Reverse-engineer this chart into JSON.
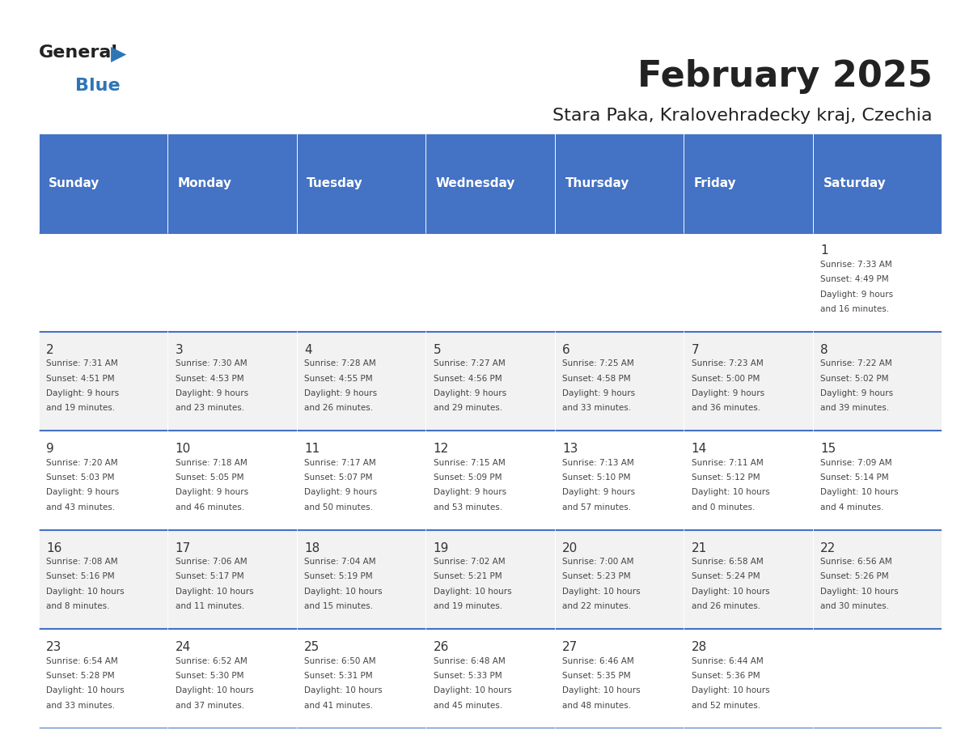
{
  "title": "February 2025",
  "subtitle": "Stara Paka, Kralovehradecky kraj, Czechia",
  "header_bg": "#4472C4",
  "header_text_color": "#FFFFFF",
  "day_names": [
    "Sunday",
    "Monday",
    "Tuesday",
    "Wednesday",
    "Thursday",
    "Friday",
    "Saturday"
  ],
  "row_bg_even": "#F2F2F2",
  "row_bg_odd": "#FFFFFF",
  "grid_line_color": "#4472C4",
  "title_color": "#222222",
  "subtitle_color": "#222222",
  "day_num_color": "#333333",
  "cell_text_color": "#444444",
  "logo_general_color": "#222222",
  "logo_blue_color": "#2E75B6",
  "calendar": [
    [
      null,
      null,
      null,
      null,
      null,
      null,
      {
        "day": 1,
        "sunrise": "7:33 AM",
        "sunset": "4:49 PM",
        "daylight": "9 hours\nand 16 minutes."
      }
    ],
    [
      {
        "day": 2,
        "sunrise": "7:31 AM",
        "sunset": "4:51 PM",
        "daylight": "9 hours\nand 19 minutes."
      },
      {
        "day": 3,
        "sunrise": "7:30 AM",
        "sunset": "4:53 PM",
        "daylight": "9 hours\nand 23 minutes."
      },
      {
        "day": 4,
        "sunrise": "7:28 AM",
        "sunset": "4:55 PM",
        "daylight": "9 hours\nand 26 minutes."
      },
      {
        "day": 5,
        "sunrise": "7:27 AM",
        "sunset": "4:56 PM",
        "daylight": "9 hours\nand 29 minutes."
      },
      {
        "day": 6,
        "sunrise": "7:25 AM",
        "sunset": "4:58 PM",
        "daylight": "9 hours\nand 33 minutes."
      },
      {
        "day": 7,
        "sunrise": "7:23 AM",
        "sunset": "5:00 PM",
        "daylight": "9 hours\nand 36 minutes."
      },
      {
        "day": 8,
        "sunrise": "7:22 AM",
        "sunset": "5:02 PM",
        "daylight": "9 hours\nand 39 minutes."
      }
    ],
    [
      {
        "day": 9,
        "sunrise": "7:20 AM",
        "sunset": "5:03 PM",
        "daylight": "9 hours\nand 43 minutes."
      },
      {
        "day": 10,
        "sunrise": "7:18 AM",
        "sunset": "5:05 PM",
        "daylight": "9 hours\nand 46 minutes."
      },
      {
        "day": 11,
        "sunrise": "7:17 AM",
        "sunset": "5:07 PM",
        "daylight": "9 hours\nand 50 minutes."
      },
      {
        "day": 12,
        "sunrise": "7:15 AM",
        "sunset": "5:09 PM",
        "daylight": "9 hours\nand 53 minutes."
      },
      {
        "day": 13,
        "sunrise": "7:13 AM",
        "sunset": "5:10 PM",
        "daylight": "9 hours\nand 57 minutes."
      },
      {
        "day": 14,
        "sunrise": "7:11 AM",
        "sunset": "5:12 PM",
        "daylight": "10 hours\nand 0 minutes."
      },
      {
        "day": 15,
        "sunrise": "7:09 AM",
        "sunset": "5:14 PM",
        "daylight": "10 hours\nand 4 minutes."
      }
    ],
    [
      {
        "day": 16,
        "sunrise": "7:08 AM",
        "sunset": "5:16 PM",
        "daylight": "10 hours\nand 8 minutes."
      },
      {
        "day": 17,
        "sunrise": "7:06 AM",
        "sunset": "5:17 PM",
        "daylight": "10 hours\nand 11 minutes."
      },
      {
        "day": 18,
        "sunrise": "7:04 AM",
        "sunset": "5:19 PM",
        "daylight": "10 hours\nand 15 minutes."
      },
      {
        "day": 19,
        "sunrise": "7:02 AM",
        "sunset": "5:21 PM",
        "daylight": "10 hours\nand 19 minutes."
      },
      {
        "day": 20,
        "sunrise": "7:00 AM",
        "sunset": "5:23 PM",
        "daylight": "10 hours\nand 22 minutes."
      },
      {
        "day": 21,
        "sunrise": "6:58 AM",
        "sunset": "5:24 PM",
        "daylight": "10 hours\nand 26 minutes."
      },
      {
        "day": 22,
        "sunrise": "6:56 AM",
        "sunset": "5:26 PM",
        "daylight": "10 hours\nand 30 minutes."
      }
    ],
    [
      {
        "day": 23,
        "sunrise": "6:54 AM",
        "sunset": "5:28 PM",
        "daylight": "10 hours\nand 33 minutes."
      },
      {
        "day": 24,
        "sunrise": "6:52 AM",
        "sunset": "5:30 PM",
        "daylight": "10 hours\nand 37 minutes."
      },
      {
        "day": 25,
        "sunrise": "6:50 AM",
        "sunset": "5:31 PM",
        "daylight": "10 hours\nand 41 minutes."
      },
      {
        "day": 26,
        "sunrise": "6:48 AM",
        "sunset": "5:33 PM",
        "daylight": "10 hours\nand 45 minutes."
      },
      {
        "day": 27,
        "sunrise": "6:46 AM",
        "sunset": "5:35 PM",
        "daylight": "10 hours\nand 48 minutes."
      },
      {
        "day": 28,
        "sunrise": "6:44 AM",
        "sunset": "5:36 PM",
        "daylight": "10 hours\nand 52 minutes."
      },
      null
    ]
  ]
}
